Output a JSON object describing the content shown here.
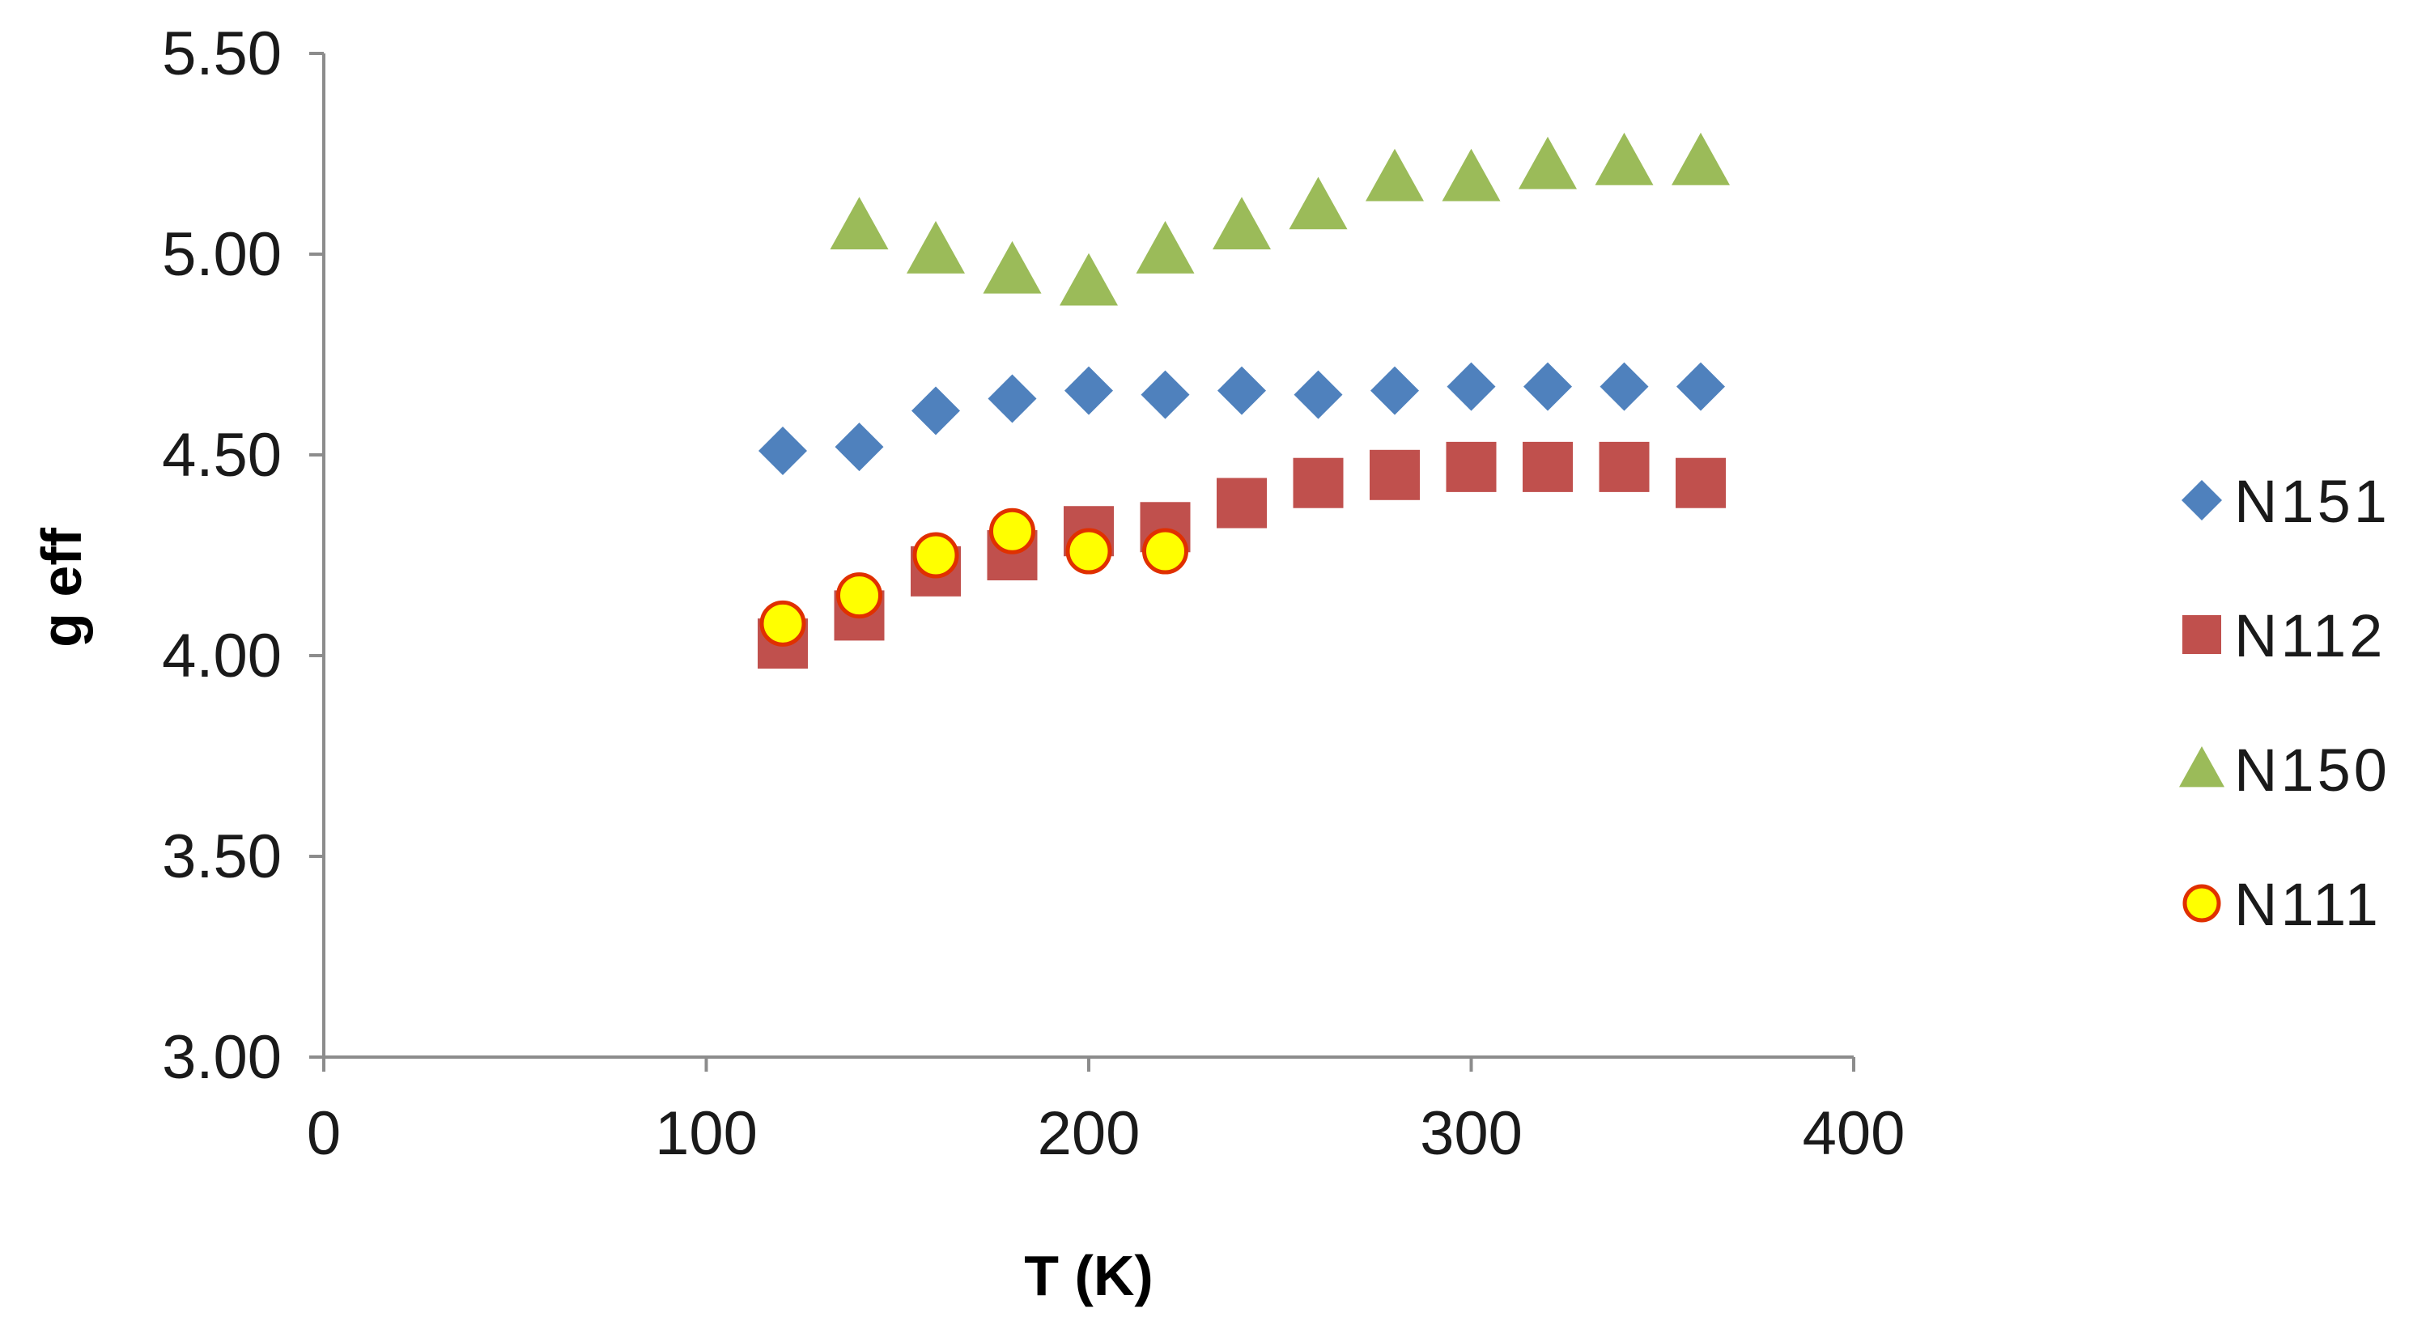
{
  "chart_data": {
    "type": "scatter",
    "xlabel": "T (K)",
    "ylabel": "g eff",
    "xlim": [
      0,
      400
    ],
    "ylim": [
      3.0,
      5.5
    ],
    "x_ticks": [
      0,
      100,
      200,
      300,
      400
    ],
    "y_ticks": [
      3.0,
      3.5,
      4.0,
      4.5,
      5.0,
      5.5
    ],
    "x_tick_labels": [
      "0",
      "100",
      "200",
      "300",
      "400"
    ],
    "y_tick_labels": [
      "3.00",
      "3.50",
      "4.00",
      "4.50",
      "5.00",
      "5.50"
    ],
    "grid": false,
    "legend_position": "right",
    "series": [
      {
        "name": "N151",
        "marker": "diamond",
        "color": "#4F81BD",
        "x": [
          120,
          140,
          160,
          180,
          200,
          220,
          240,
          260,
          280,
          300,
          320,
          340,
          360
        ],
        "y": [
          4.51,
          4.52,
          4.61,
          4.64,
          4.66,
          4.65,
          4.66,
          4.65,
          4.66,
          4.67,
          4.67,
          4.67,
          4.67
        ]
      },
      {
        "name": "N112",
        "marker": "square",
        "color": "#C0504D",
        "x": [
          120,
          140,
          160,
          180,
          200,
          220,
          240,
          260,
          280,
          300,
          320,
          340,
          360
        ],
        "y": [
          4.03,
          4.1,
          4.21,
          4.25,
          4.31,
          4.32,
          4.38,
          4.43,
          4.45,
          4.47,
          4.47,
          4.47,
          4.43
        ]
      },
      {
        "name": "N150",
        "marker": "triangle",
        "color": "#9BBB59",
        "x": [
          140,
          160,
          180,
          200,
          220,
          240,
          260,
          280,
          300,
          320,
          340,
          360
        ],
        "y": [
          5.07,
          5.01,
          4.96,
          4.93,
          5.01,
          5.07,
          5.12,
          5.19,
          5.19,
          5.22,
          5.23,
          5.23
        ]
      },
      {
        "name": "N111",
        "marker": "circle",
        "color": "#FFFF00",
        "edge_color": "#E03000",
        "x": [
          120,
          140,
          160,
          180,
          200,
          220
        ],
        "y": [
          4.08,
          4.15,
          4.25,
          4.31,
          4.26,
          4.26
        ]
      }
    ]
  }
}
